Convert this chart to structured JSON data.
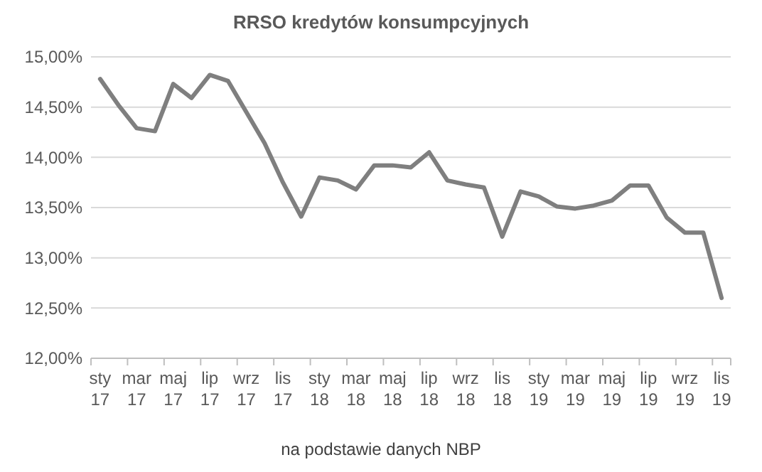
{
  "chart_data": {
    "type": "line",
    "title": "RRSO kredytów konsumpcyjnych",
    "categories": [
      "sty\n17",
      null,
      "mar\n17",
      null,
      "maj\n17",
      null,
      "lip\n17",
      null,
      "wrz\n17",
      null,
      "lis\n17",
      null,
      "sty\n18",
      null,
      "mar\n18",
      null,
      "maj\n18",
      null,
      "lip\n18",
      null,
      "wrz\n18",
      null,
      "lis\n18",
      null,
      "sty\n19",
      null,
      "mar\n19",
      null,
      "maj\n19",
      null,
      "lip\n19",
      null,
      "wrz\n19",
      null,
      "lis\n19"
    ],
    "series": [
      {
        "color": "#7f7f7f",
        "values": [
          14.78,
          14.52,
          14.29,
          14.26,
          14.73,
          14.59,
          14.82,
          14.76,
          14.45,
          14.14,
          13.75,
          13.41,
          13.8,
          13.77,
          13.68,
          13.92,
          13.92,
          13.9,
          14.05,
          13.77,
          13.73,
          13.7,
          13.21,
          13.66,
          13.61,
          13.51,
          13.49,
          13.52,
          13.57,
          13.72,
          13.72,
          13.4,
          13.25,
          13.25,
          12.6
        ]
      }
    ],
    "ylim": [
      12,
      15
    ],
    "yticks": [
      {
        "value": 12,
        "label": "12,00%"
      },
      {
        "value": 12.5,
        "label": "12,50%"
      },
      {
        "value": 13,
        "label": "13,00%"
      },
      {
        "value": 13.5,
        "label": "13,50%"
      },
      {
        "value": 14,
        "label": "14,00%"
      },
      {
        "value": 14.5,
        "label": "14,50%"
      },
      {
        "value": 15,
        "label": "15,00%"
      }
    ],
    "grid": "y",
    "marker": "none",
    "line_style": "solid",
    "annotations": [
      "na podstawie danych NBP"
    ]
  }
}
